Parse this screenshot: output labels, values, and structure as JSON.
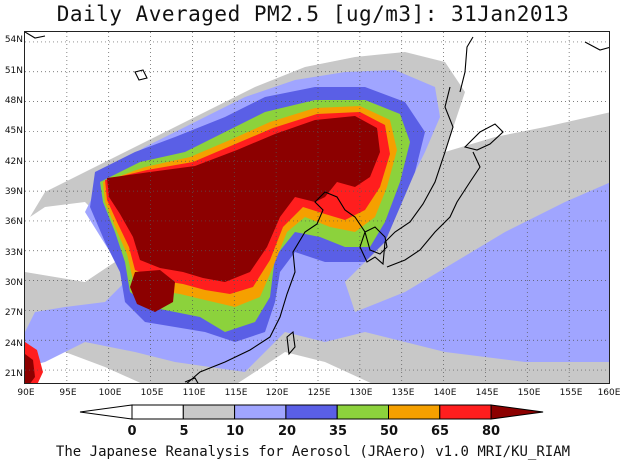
{
  "title": "Daily Averaged PM2.5 [ug/m3]: 31Jan2013",
  "credit": "The Japanese Reanalysis for Aerosol (JRAero) v1.0 MRI/KU_RIAM",
  "map": {
    "lon_range": [
      90,
      160
    ],
    "lat_range": [
      19.5,
      55
    ],
    "lat_ticks": [
      "54N",
      "51N",
      "48N",
      "45N",
      "42N",
      "39N",
      "36N",
      "33N",
      "30N",
      "27N",
      "24N",
      "21N"
    ],
    "lon_ticks": [
      "90E",
      "95E",
      "100E",
      "105E",
      "110E",
      "115E",
      "120E",
      "125E",
      "130E",
      "135E",
      "140E",
      "145E",
      "150E",
      "155E",
      "160E"
    ],
    "gridlines": "dotted"
  },
  "colorbar": {
    "labels": [
      "0",
      "5",
      "10",
      "20",
      "35",
      "50",
      "65",
      "80"
    ],
    "colors": [
      "#ffffff",
      "#c8c8c8",
      "#a0a5ff",
      "#5a5fe6",
      "#8cd23c",
      "#f5a000",
      "#ff1e1e",
      "#8c0000"
    ],
    "boundaries": [
      0,
      5,
      10,
      20,
      35,
      50,
      65,
      80
    ]
  }
}
